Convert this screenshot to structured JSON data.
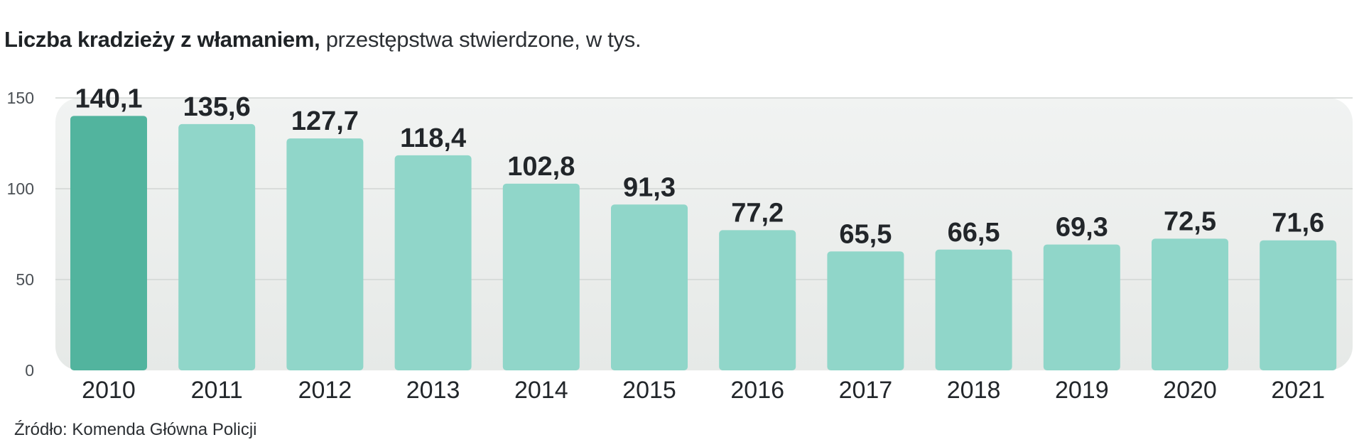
{
  "title": {
    "bold": "Liczba kradzieży z włamaniem,",
    "rest": " przestępstwa stwierdzone, w tys."
  },
  "source": "Źródło: Komenda Główna Policji",
  "chart_data": {
    "type": "bar",
    "title": "Liczba kradzieży z włamaniem, przestępstwa stwierdzone, w tys.",
    "xlabel": "",
    "ylabel": "",
    "ylim": [
      0,
      150
    ],
    "yticks": [
      0,
      50,
      100,
      150
    ],
    "grid": true,
    "categories": [
      "2010",
      "2011",
      "2012",
      "2013",
      "2014",
      "2015",
      "2016",
      "2017",
      "2018",
      "2019",
      "2020",
      "2021"
    ],
    "values": [
      140.1,
      135.6,
      127.7,
      118.4,
      102.8,
      91.3,
      77.2,
      65.5,
      66.5,
      69.3,
      72.5,
      71.6
    ],
    "value_labels": [
      "140,1",
      "135,6",
      "127,7",
      "118,4",
      "102,8",
      "91,3",
      "77,2",
      "65,5",
      "66,5",
      "69,3",
      "72,5",
      "71,6"
    ],
    "highlight_index": 0,
    "colors": {
      "bar": "#90d6c9",
      "bar_highlight": "#52b49e",
      "panel": "#eceeed",
      "grid": "#d2d6d4"
    }
  }
}
